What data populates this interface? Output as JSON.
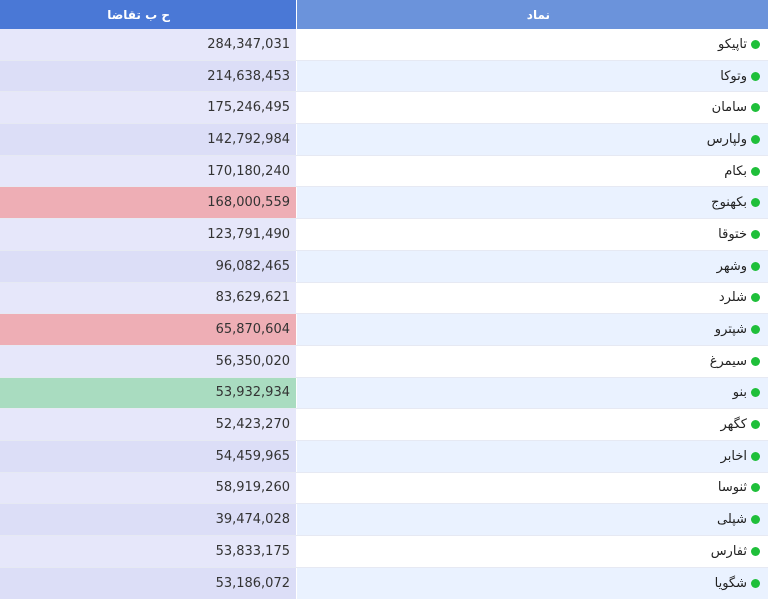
{
  "header": {
    "value_label": "ح ب تقاضا",
    "symbol_label": "نماد"
  },
  "colors": {
    "header_left": "#4a78d6",
    "header_right": "#6b93db",
    "status_dot": "#1fbf3a",
    "highlight_red": "#eeaeb5",
    "highlight_green": "#a9dcc0"
  },
  "rows": [
    {
      "symbol": "تاپیکو",
      "value": "284,347,031",
      "highlight": "none"
    },
    {
      "symbol": "وتوکا",
      "value": "214,638,453",
      "highlight": "none"
    },
    {
      "symbol": "سامان",
      "value": "175,246,495",
      "highlight": "none"
    },
    {
      "symbol": "ولپارس",
      "value": "142,792,984",
      "highlight": "none"
    },
    {
      "symbol": "بکام",
      "value": "170,180,240",
      "highlight": "none"
    },
    {
      "symbol": "بکهنوج",
      "value": "168,000,559",
      "highlight": "red"
    },
    {
      "symbol": "ختوقا",
      "value": "123,791,490",
      "highlight": "none"
    },
    {
      "symbol": "وشهر",
      "value": "96,082,465",
      "highlight": "none"
    },
    {
      "symbol": "شلرد",
      "value": "83,629,621",
      "highlight": "none"
    },
    {
      "symbol": "شپترو",
      "value": "65,870,604",
      "highlight": "red"
    },
    {
      "symbol": "سیمرغ",
      "value": "56,350,020",
      "highlight": "none"
    },
    {
      "symbol": "بنو",
      "value": "53,932,934",
      "highlight": "green"
    },
    {
      "symbol": "کگهر",
      "value": "52,423,270",
      "highlight": "none"
    },
    {
      "symbol": "اخابر",
      "value": "54,459,965",
      "highlight": "none"
    },
    {
      "symbol": "ثنوسا",
      "value": "58,919,260",
      "highlight": "none"
    },
    {
      "symbol": "شپلی",
      "value": "39,474,028",
      "highlight": "none"
    },
    {
      "symbol": "ثفارس",
      "value": "53,833,175",
      "highlight": "none"
    },
    {
      "symbol": "شگویا",
      "value": "53,186,072",
      "highlight": "none"
    }
  ]
}
